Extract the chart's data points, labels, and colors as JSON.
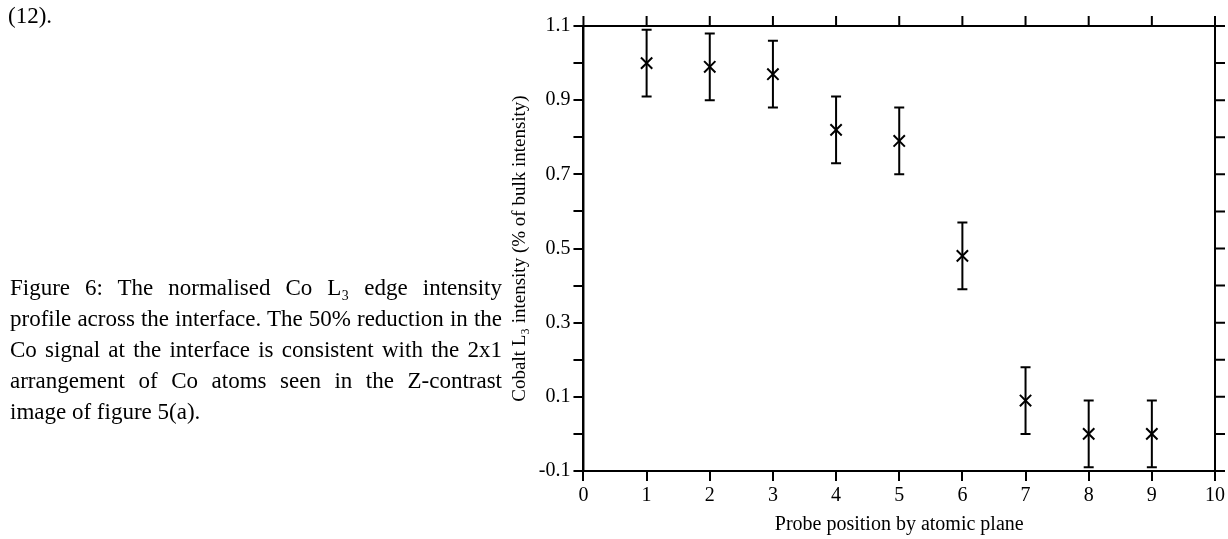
{
  "chart_data": {
    "type": "scatter",
    "xlabel": "Probe position by atomic plane",
    "ylabel": "Cobalt L₃ intensity (% of bulk intensity)",
    "x": [
      1,
      2,
      3,
      4,
      5,
      6,
      7,
      8,
      9
    ],
    "series": [
      {
        "color": "#000000",
        "values": [
          1.0,
          0.99,
          0.97,
          0.82,
          0.79,
          0.48,
          0.09,
          0.0,
          0.0
        ],
        "errors": [
          [
            0.91,
            1.09
          ],
          [
            0.9,
            1.08
          ],
          [
            0.88,
            1.06
          ],
          [
            0.73,
            0.91
          ],
          [
            0.7,
            0.88
          ],
          [
            0.39,
            0.57
          ],
          [
            0.0,
            0.18
          ],
          [
            -0.09,
            0.09
          ],
          [
            -0.09,
            0.09
          ]
        ]
      }
    ],
    "xlim": [
      0,
      10
    ],
    "xticks": [
      0,
      1,
      2,
      3,
      4,
      5,
      6,
      7,
      8,
      9,
      10
    ],
    "ylim": [
      -0.1,
      1.1
    ],
    "yticks": [
      -0.1,
      {
        "value": 0,
        "label": null
      },
      0.1,
      {
        "value": 0.2,
        "label": null
      },
      0.3,
      {
        "value": 0.4,
        "label": null
      },
      0.5,
      {
        "value": 0.6,
        "label": null
      },
      0.7,
      {
        "value": 0.8,
        "label": null
      },
      0.9,
      {
        "value": 1.0,
        "label": null
      },
      1.1
    ],
    "marker": "cross",
    "grid": false,
    "annotations": [
      "(12).",
      "Figure 6: The normalised Co L₃ edge intensity profile across the interface. The 50% reduction in the Co signal at the interface is consistent with the 2x1 arrangement of Co atoms seen in the Z-contrast image of figure 5(a)."
    ]
  }
}
